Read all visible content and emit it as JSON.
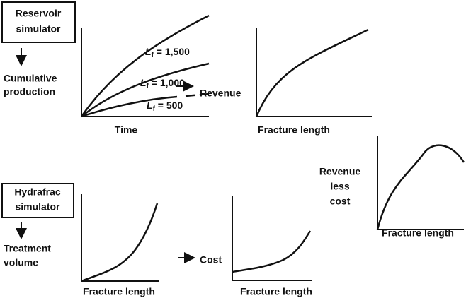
{
  "reservoir": {
    "box": [
      "Reservoir",
      "simulator"
    ],
    "output": [
      "Cumulative",
      "production"
    ],
    "chart": {
      "x_label": "Time",
      "curves": [
        {
          "symbol": "L",
          "subscript": "f",
          "value": " = 1,500"
        },
        {
          "symbol": "L",
          "subscript": "f",
          "value": " = 1,000"
        },
        {
          "symbol": "L",
          "subscript": "f",
          "value": " = 500"
        }
      ]
    }
  },
  "revenue": {
    "y_label": "Revenue",
    "x_label": "Fracture length"
  },
  "net": {
    "y_label": [
      "Revenue",
      "less",
      "cost"
    ],
    "x_label": "Fracture length"
  },
  "hydrafrac": {
    "box": [
      "Hydrafrac",
      "simulator"
    ],
    "output": [
      "Treatment",
      "volume"
    ],
    "x_label": "Fracture length"
  },
  "cost": {
    "y_label": "Cost",
    "x_label": "Fracture length"
  }
}
